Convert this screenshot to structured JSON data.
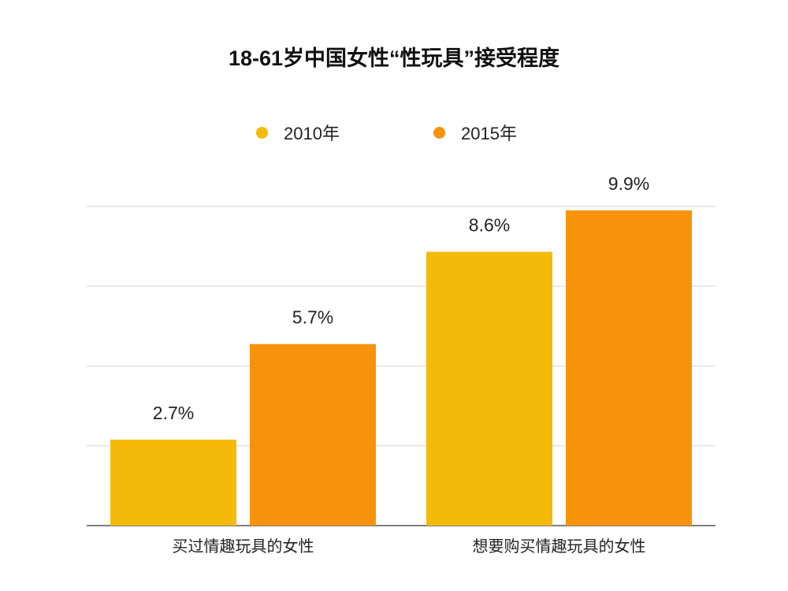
{
  "chart_data": {
    "type": "bar",
    "title": "18-61岁中国女性“性玩具”接受程度",
    "categories": [
      "买过情趣玩具的女性",
      "想要购买情趣玩具的女性"
    ],
    "series": [
      {
        "name": "2010年",
        "values": [
          2.7,
          8.6
        ],
        "labels": [
          "2.7%",
          "8.6%"
        ],
        "color": "#F5B90A"
      },
      {
        "name": "2015年",
        "values": [
          5.7,
          9.9
        ],
        "labels": [
          "5.7%",
          "9.9%"
        ],
        "color": "#F7930B"
      }
    ],
    "unit": "%",
    "grid": true,
    "legend": "top-center"
  }
}
